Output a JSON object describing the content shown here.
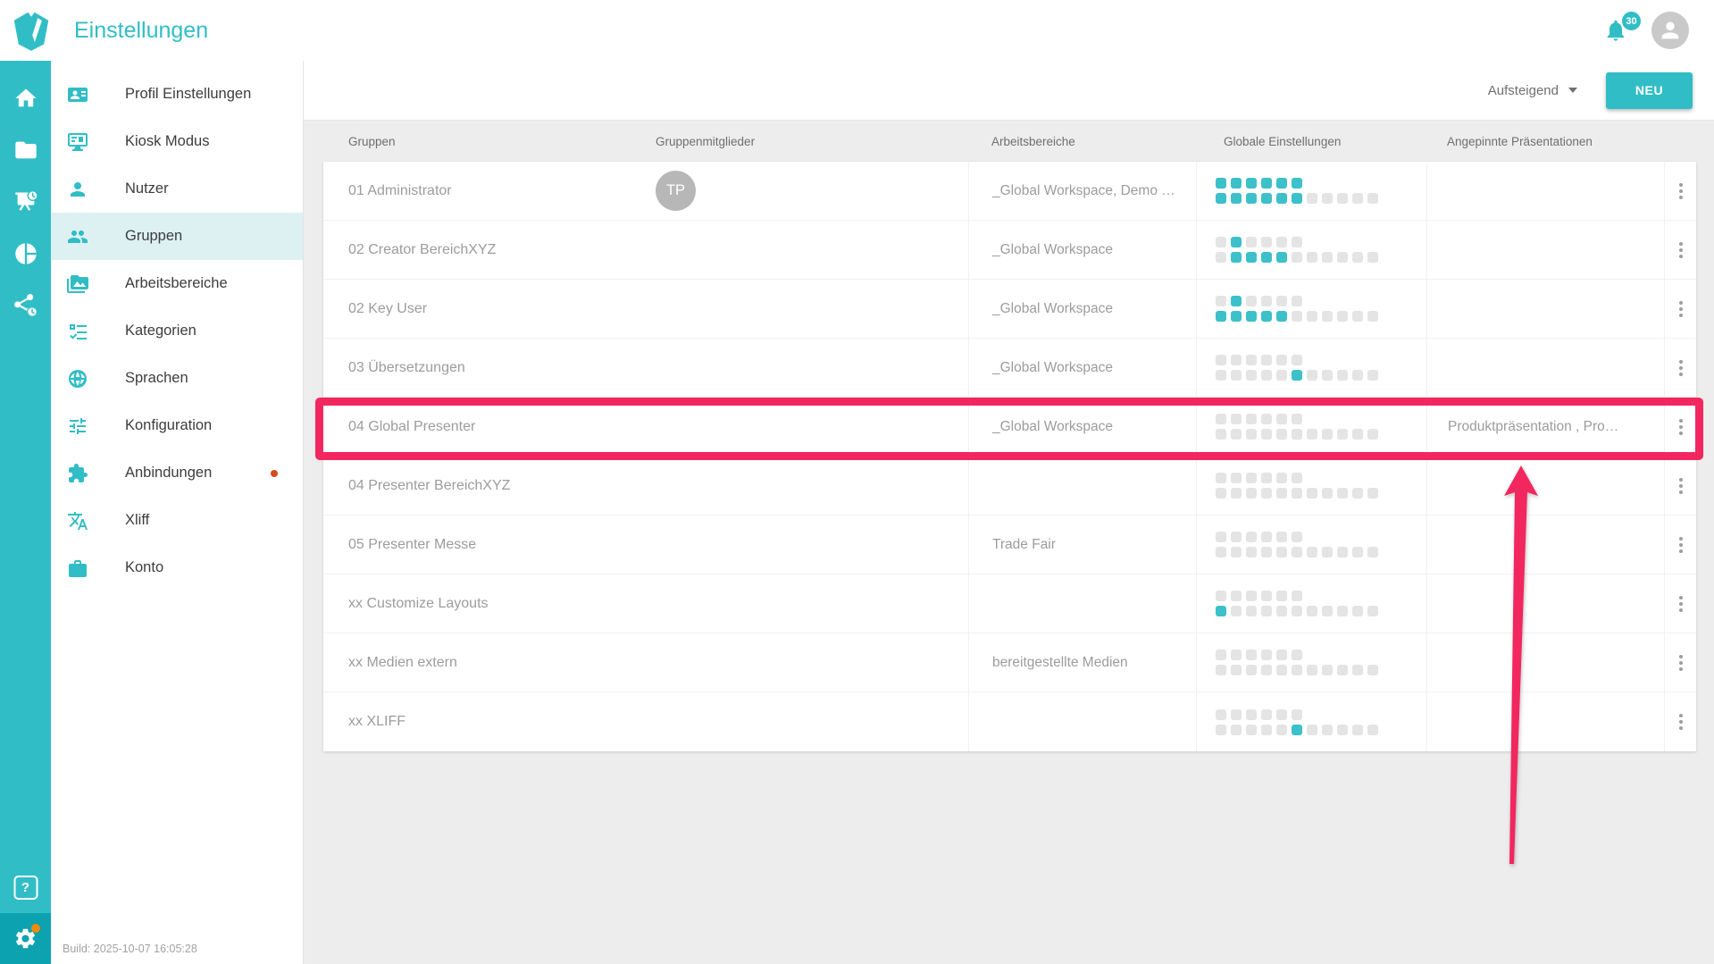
{
  "colors": {
    "accent": "#31bdc6",
    "accent_dark": "#0da2af",
    "selected_bg": "#ddf1f3",
    "highlight": "#f2275f",
    "square_teal": "#3cc0ca",
    "square_gray": "#e4e4e4",
    "orange_dot": "#f28a00",
    "red_dot": "#d34a1e",
    "page_bg": "#ededed",
    "row_text": "#9c9c9c",
    "header_text": "#6f6f6f",
    "label_text": "#3d3d3d",
    "build_text": "#a2a2a2",
    "avatar_gray": "#b7b7b7",
    "separator": "#f1f1f1"
  },
  "header": {
    "title": "Einstellungen",
    "notification_count": "30",
    "bell_icon": "bell",
    "avatar_icon": "person"
  },
  "rail": {
    "items": [
      {
        "icon": "home"
      },
      {
        "icon": "folder"
      },
      {
        "icon": "presentation-clock"
      },
      {
        "icon": "pie-chart"
      },
      {
        "icon": "share-clock"
      }
    ],
    "help_glyph": "?",
    "gear_icon": "gear"
  },
  "sidebar": {
    "items": [
      {
        "icon": "contact-card",
        "label": "Profil Einstellungen"
      },
      {
        "icon": "kiosk-screen",
        "label": "Kiosk Modus"
      },
      {
        "icon": "person",
        "label": "Nutzer"
      },
      {
        "icon": "people",
        "label": "Gruppen",
        "selected": true
      },
      {
        "icon": "workspace-image",
        "label": "Arbeitsbereiche"
      },
      {
        "icon": "checklist",
        "label": "Kategorien"
      },
      {
        "icon": "globe",
        "label": "Sprachen"
      },
      {
        "icon": "tune",
        "label": "Konfiguration"
      },
      {
        "icon": "puzzle",
        "label": "Anbindungen",
        "badge_dot": true
      },
      {
        "icon": "translate",
        "label": "Xliff"
      },
      {
        "icon": "briefcase",
        "label": "Konto"
      }
    ],
    "build_info": "Build: 2025-10-07 16:05:28"
  },
  "toolbar": {
    "sort_label": "Aufsteigend",
    "new_button_label": "NEU"
  },
  "table": {
    "columns": [
      "Gruppen",
      "Gruppenmitglieder",
      "Arbeitsbereiche",
      "Globale Einstellungen",
      "Angepinnte Präsentationen"
    ],
    "rows": [
      {
        "name": "01 Administrator",
        "member_initials": "TP",
        "workspaces": "_Global Workspace, Demo …",
        "squares": {
          "top": "tttttt",
          "bottom": "ttttttggggg"
        },
        "pinned": ""
      },
      {
        "name": "02 Creator BereichXYZ",
        "member_initials": "",
        "workspaces": "_Global Workspace",
        "squares": {
          "top": "gtgggg",
          "bottom": "gttttgggggg"
        },
        "pinned": ""
      },
      {
        "name": "02 Key User",
        "member_initials": "",
        "workspaces": "_Global Workspace",
        "squares": {
          "top": "gtgggg",
          "bottom": "tttttgggggg"
        },
        "pinned": ""
      },
      {
        "name": "03 Übersetzungen",
        "member_initials": "",
        "workspaces": "_Global Workspace",
        "squares": {
          "top": "gggggg",
          "bottom": "gggggtggggg"
        },
        "pinned": ""
      },
      {
        "name": "04 Global Presenter",
        "member_initials": "",
        "workspaces": "_Global Workspace",
        "squares": {
          "top": "gggggg",
          "bottom": "ggggggggggg"
        },
        "pinned": "Produktpräsentation , Pro…",
        "highlighted": true
      },
      {
        "name": "04 Presenter BereichXYZ",
        "member_initials": "",
        "workspaces": "",
        "squares": {
          "top": "gggggg",
          "bottom": "ggggggggggg"
        },
        "pinned": ""
      },
      {
        "name": "05 Presenter Messe",
        "member_initials": "",
        "workspaces": "Trade Fair",
        "squares": {
          "top": "gggggg",
          "bottom": "ggggggggggg"
        },
        "pinned": ""
      },
      {
        "name": "xx Customize Layouts",
        "member_initials": "",
        "workspaces": "",
        "squares": {
          "top": "gggggg",
          "bottom": "tgggggggggg"
        },
        "pinned": ""
      },
      {
        "name": "xx Medien extern",
        "member_initials": "",
        "workspaces": "bereitgestellte Medien",
        "squares": {
          "top": "gggggg",
          "bottom": "ggggggggggg"
        },
        "pinned": ""
      },
      {
        "name": "xx XLIFF",
        "member_initials": "",
        "workspaces": "",
        "squares": {
          "top": "gggggg",
          "bottom": "gggggtggggg"
        },
        "pinned": ""
      }
    ]
  },
  "annotation": {
    "highlighted_row": "04 Global Presenter",
    "arrow": "points-up-to-highlighted-row"
  }
}
